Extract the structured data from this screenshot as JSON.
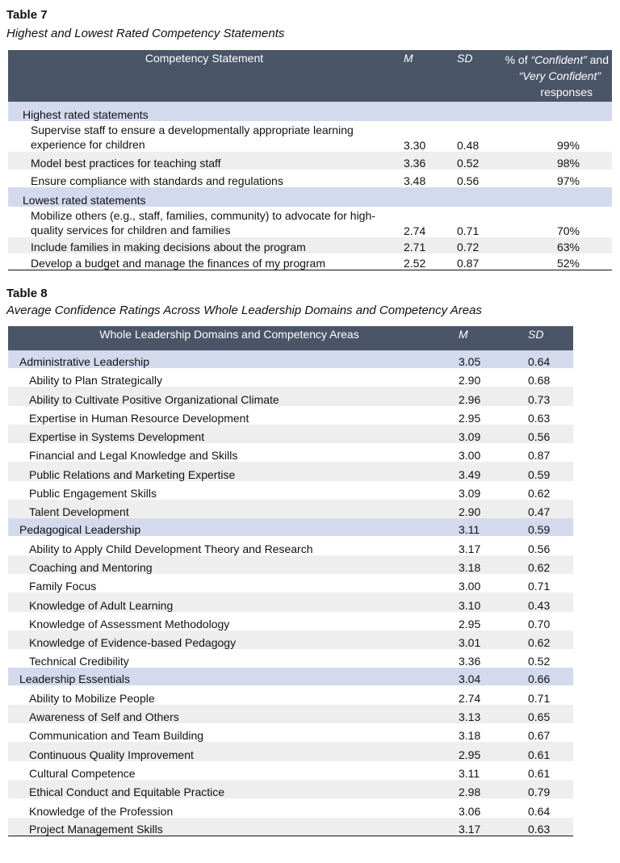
{
  "table7": {
    "number": "Table 7",
    "title": "Highest and Lowest Rated Competency Statements",
    "headers": {
      "statement": "Competency Statement",
      "m": "M",
      "sd": "SD",
      "pct_pre": "% of ",
      "pct_conf": "“Confident”",
      "pct_and": " and ",
      "pct_very": "“Very Confident”",
      "pct_post": "responses"
    },
    "sections": [
      {
        "label": "Highest rated statements",
        "rows": [
          {
            "statement": "Supervise staff to ensure a developmentally appropriate learning experience for children",
            "m": "3.30",
            "sd": "0.48",
            "pct": "99%"
          },
          {
            "statement": "Model best practices for teaching staff",
            "m": "3.36",
            "sd": "0.52",
            "pct": "98%"
          },
          {
            "statement": "Ensure compliance with standards and regulations",
            "m": "3.48",
            "sd": "0.56",
            "pct": "97%"
          }
        ]
      },
      {
        "label": "Lowest rated statements",
        "rows": [
          {
            "statement": "Mobilize others (e.g., staff, families, community) to advocate for high-quality services for children and families",
            "m": "2.74",
            "sd": "0.71",
            "pct": "70%"
          },
          {
            "statement": "Include families in making decisions about the program",
            "m": "2.71",
            "sd": "0.72",
            "pct": "63%"
          },
          {
            "statement": "Develop a budget and manage the finances of my program",
            "m": "2.52",
            "sd": "0.87",
            "pct": "52%"
          }
        ]
      }
    ]
  },
  "table8": {
    "number": "Table 8",
    "title": "Average Confidence Ratings Across Whole Leadership Domains and Competency Areas",
    "headers": {
      "area": "Whole Leadership Domains and Competency Areas",
      "m": "M",
      "sd": "SD"
    },
    "domains": [
      {
        "label": "Administrative Leadership",
        "m": "3.05",
        "sd": "0.64",
        "rows": [
          {
            "area": "Ability to Plan Strategically",
            "m": "2.90",
            "sd": "0.68"
          },
          {
            "area": "Ability to Cultivate Positive Organizational Climate",
            "m": "2.96",
            "sd": "0.73"
          },
          {
            "area": "Expertise in Human Resource Development",
            "m": "2.95",
            "sd": "0.63"
          },
          {
            "area": "Expertise in Systems Development",
            "m": "3.09",
            "sd": "0.56"
          },
          {
            "area": "Financial and Legal Knowledge and Skills",
            "m": "3.00",
            "sd": "0.87"
          },
          {
            "area": "Public Relations and Marketing Expertise",
            "m": "3.49",
            "sd": "0.59"
          },
          {
            "area": "Public Engagement Skills",
            "m": "3.09",
            "sd": "0.62"
          },
          {
            "area": "Talent Development",
            "m": "2.90",
            "sd": "0.47"
          }
        ]
      },
      {
        "label": "Pedagogical Leadership",
        "m": "3.11",
        "sd": "0.59",
        "rows": [
          {
            "area": "Ability to Apply Child Development Theory and Research",
            "m": "3.17",
            "sd": "0.56"
          },
          {
            "area": "Coaching and Mentoring",
            "m": "3.18",
            "sd": "0.62"
          },
          {
            "area": "Family Focus",
            "m": "3.00",
            "sd": "0.71"
          },
          {
            "area": "Knowledge of Adult Learning",
            "m": "3.10",
            "sd": "0.43"
          },
          {
            "area": "Knowledge of Assessment Methodology",
            "m": "2.95",
            "sd": "0.70"
          },
          {
            "area": "Knowledge of Evidence-based Pedagogy",
            "m": "3.01",
            "sd": "0.62"
          },
          {
            "area": "Technical Credibility",
            "m": "3.36",
            "sd": "0.52"
          }
        ]
      },
      {
        "label": "Leadership Essentials",
        "m": "3.04",
        "sd": "0.66",
        "rows": [
          {
            "area": "Ability to Mobilize People",
            "m": "2.74",
            "sd": "0.71"
          },
          {
            "area": "Awareness of Self and Others",
            "m": "3.13",
            "sd": "0.65"
          },
          {
            "area": "Communication and Team Building",
            "m": "3.18",
            "sd": "0.67"
          },
          {
            "area": "Continuous Quality Improvement",
            "m": "2.95",
            "sd": "0.61"
          },
          {
            "area": "Cultural Competence",
            "m": "3.11",
            "sd": "0.61"
          },
          {
            "area": "Ethical Conduct and Equitable Practice",
            "m": "2.98",
            "sd": "0.79"
          },
          {
            "area": "Knowledge of the Profession",
            "m": "3.06",
            "sd": "0.64"
          },
          {
            "area": "Project Management Skills",
            "m": "3.17",
            "sd": "0.63"
          }
        ]
      }
    ]
  }
}
